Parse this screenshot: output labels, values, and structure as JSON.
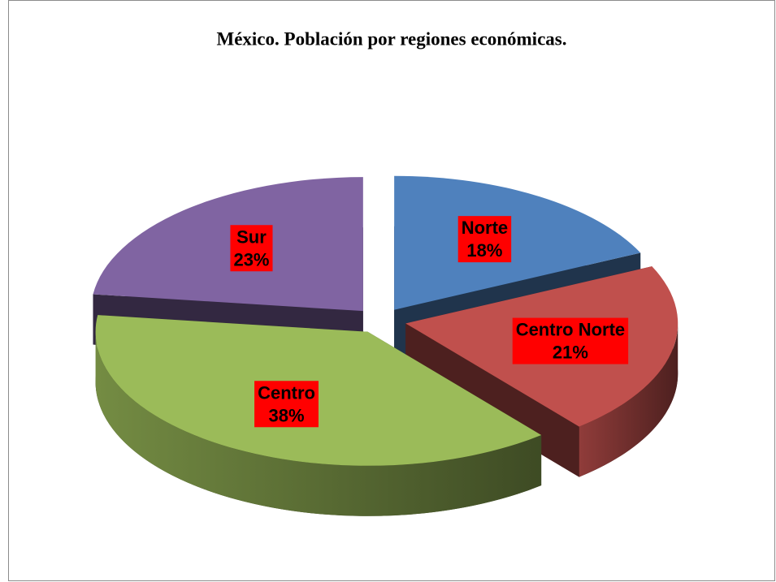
{
  "chart_data": {
    "type": "pie3d",
    "title": "México. Población por regiones económicas.",
    "categories": [
      "Norte",
      "Centro Norte",
      "Centro",
      "Sur"
    ],
    "values": [
      18,
      21,
      38,
      23
    ],
    "value_labels": [
      "18%",
      "21%",
      "38%",
      "23%"
    ],
    "colors": [
      "#4f81bd",
      "#c0504d",
      "#9bbb59",
      "#8064a2"
    ],
    "label_box_color": "#ff0000"
  }
}
